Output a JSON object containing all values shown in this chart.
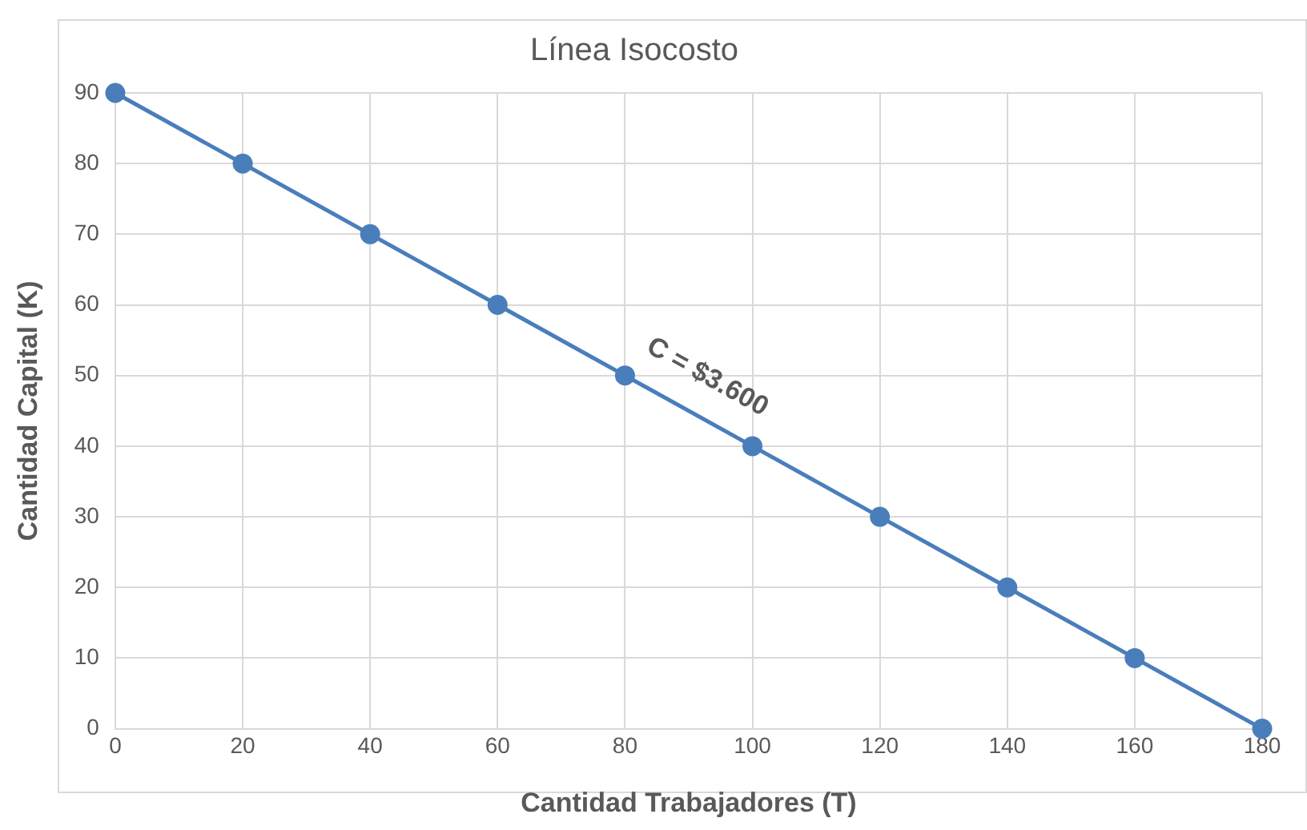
{
  "chart_data": {
    "type": "line",
    "title": "Línea Isocosto",
    "xlabel": "Cantidad Trabajadores (T)",
    "ylabel": "Cantidad Capital (K)",
    "x": [
      0,
      20,
      40,
      60,
      80,
      100,
      120,
      140,
      160,
      180
    ],
    "series": [
      {
        "color": "#4a7ebb",
        "values": [
          90,
          80,
          70,
          60,
          50,
          40,
          30,
          20,
          10,
          0
        ]
      }
    ],
    "xlim": [
      0,
      180
    ],
    "xticks": [
      0,
      20,
      40,
      60,
      80,
      100,
      120,
      140,
      160,
      180
    ],
    "ylim": [
      0,
      90
    ],
    "yticks": [
      0,
      10,
      20,
      30,
      40,
      50,
      60,
      70,
      80,
      90
    ],
    "grid": true,
    "marker": "circle",
    "line_style": "solid",
    "legend": false,
    "annotations": [
      "C = $3.600"
    ]
  }
}
